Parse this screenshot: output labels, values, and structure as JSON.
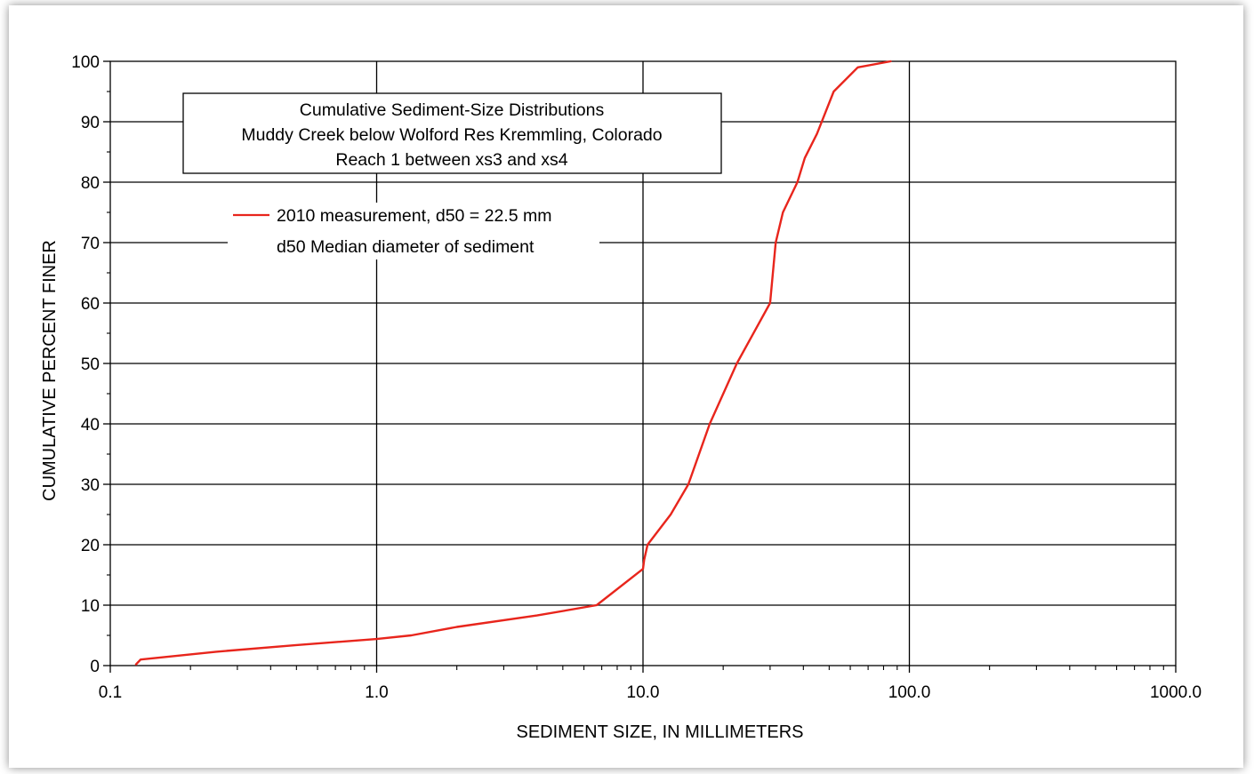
{
  "chart_data": {
    "type": "line",
    "title_lines": [
      "Cumulative  Sediment-Size  Distributions",
      "Muddy  Creek below Wolford Res Kremmling,  Colorado",
      "Reach  1 between xs3 and xs4"
    ],
    "xlabel": "SEDIMENT SIZE, IN MILLIMETERS",
    "ylabel": "CUMULATIVE PERCENT FINER",
    "x_scale": "log",
    "xlim": [
      0.1,
      1000
    ],
    "ylim": [
      0,
      100
    ],
    "x_tick_labels": [
      "0.1",
      "1.0",
      "10.0",
      "100.0",
      "1000.0"
    ],
    "y_tick_labels": [
      "0",
      "10",
      "20",
      "30",
      "40",
      "50",
      "60",
      "70",
      "80",
      "90",
      "100"
    ],
    "grid": true,
    "legend_position": "top-left",
    "legend_note": "d50  Median diameter of sediment",
    "line_color": "#e8251c",
    "series": [
      {
        "name": "2010 measurement, d50 = 22.5 mm",
        "x": [
          0.125,
          0.13,
          0.25,
          0.5,
          1.0,
          1.35,
          2.0,
          4.0,
          6.7,
          10.0,
          10.1,
          10.4,
          12.7,
          14.8,
          17.8,
          22.5,
          30.0,
          31.5,
          33.5,
          38.0,
          40.5,
          45.0,
          52.0,
          64.0,
          85.0
        ],
        "y": [
          0.2,
          1.0,
          2.3,
          3.4,
          4.4,
          5.0,
          6.4,
          8.3,
          10.0,
          16.0,
          17.5,
          20.0,
          25.0,
          30.0,
          40.0,
          50.0,
          60.0,
          70.0,
          75.0,
          80.0,
          84.0,
          88.0,
          95.0,
          99.0,
          100.0
        ]
      }
    ]
  }
}
